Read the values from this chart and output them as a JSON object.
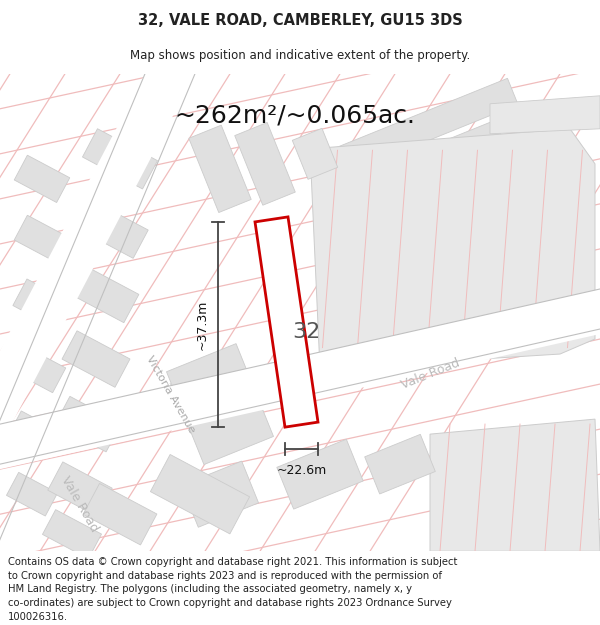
{
  "title_line1": "32, VALE ROAD, CAMBERLEY, GU15 3DS",
  "title_line2": "Map shows position and indicative extent of the property.",
  "area_text": "~262m²/~0.065ac.",
  "property_number": "32",
  "dim_width": "~22.6m",
  "dim_height": "~37.3m",
  "label_victoria": "Victoria Avenue",
  "label_vale_road_mid": "Vale Road",
  "label_vale_road_bot": "Vale Road",
  "footer_lines": [
    "Contains OS data © Crown copyright and database right 2021. This information is subject",
    "to Crown copyright and database rights 2023 and is reproduced with the permission of",
    "HM Land Registry. The polygons (including the associated geometry, namely x, y",
    "co-ordinates) are subject to Crown copyright and database rights 2023 Ordnance Survey",
    "100026316."
  ],
  "map_bg": "#ffffff",
  "road_line_color": "#f0bcbc",
  "road_fill_color": "#f8e8e8",
  "building_fill": "#e0e0e0",
  "building_edge": "#cccccc",
  "property_outline": "#cc0000",
  "property_fill": "#ffffff",
  "dim_color": "#444444",
  "text_dark": "#222222",
  "text_road": "#bbbbbb",
  "title_fs": 10.5,
  "subtitle_fs": 8.5,
  "area_fs": 18,
  "footer_fs": 7.2,
  "street_label_fs": 8,
  "prop_label_fs": 16
}
